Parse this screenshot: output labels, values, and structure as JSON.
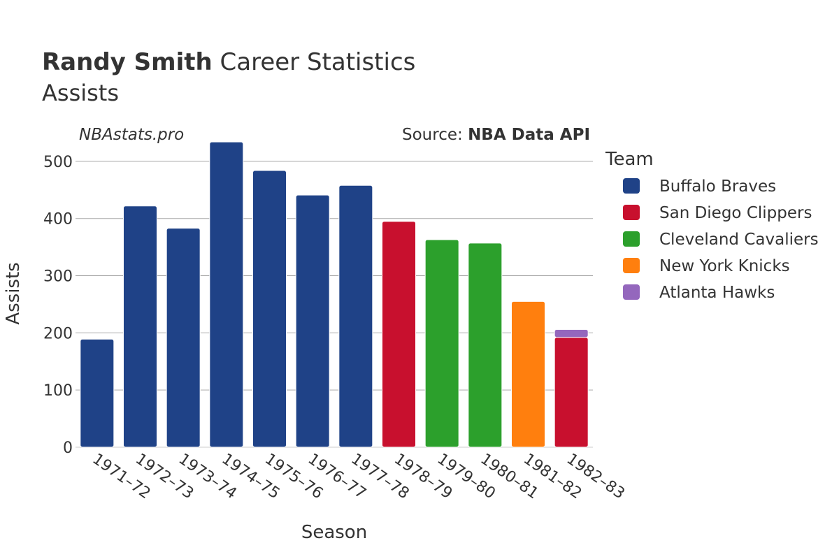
{
  "chart_data": {
    "type": "bar",
    "stacked": true,
    "title_bold": "Randy Smith",
    "title_rest": "Career Statistics",
    "subtitle": "Assists",
    "watermark": "NBAstats.pro",
    "source_label": "Source:",
    "source_name": "NBA Data API",
    "xlabel": "Season",
    "ylabel": "Assists",
    "ylim": [
      0,
      550
    ],
    "yticks": [
      0,
      100,
      200,
      300,
      400,
      500
    ],
    "grid": true,
    "legend_title": "Team",
    "legend_position": "right",
    "categories": [
      "1971–72",
      "1972–73",
      "1973–74",
      "1974–75",
      "1975–76",
      "1976–77",
      "1977–78",
      "1978–79",
      "1979–80",
      "1980–81",
      "1981–82",
      "1982–83"
    ],
    "series": [
      {
        "name": "Buffalo Braves",
        "color": "#1f4287",
        "values": [
          189,
          422,
          383,
          534,
          484,
          441,
          458,
          0,
          0,
          0,
          0,
          0
        ]
      },
      {
        "name": "San Diego Clippers",
        "color": "#c8102e",
        "values": [
          0,
          0,
          0,
          0,
          0,
          0,
          0,
          395,
          0,
          0,
          0,
          192
        ]
      },
      {
        "name": "Cleveland Cavaliers",
        "color": "#2ca02c",
        "values": [
          0,
          0,
          0,
          0,
          0,
          0,
          0,
          0,
          363,
          357,
          0,
          0
        ]
      },
      {
        "name": "New York Knicks",
        "color": "#ff7f0e",
        "values": [
          0,
          0,
          0,
          0,
          0,
          0,
          0,
          0,
          0,
          0,
          255,
          0
        ]
      },
      {
        "name": "Atlanta Hawks",
        "color": "#9467bd",
        "values": [
          0,
          0,
          0,
          0,
          0,
          0,
          0,
          0,
          0,
          0,
          0,
          14
        ]
      }
    ]
  }
}
